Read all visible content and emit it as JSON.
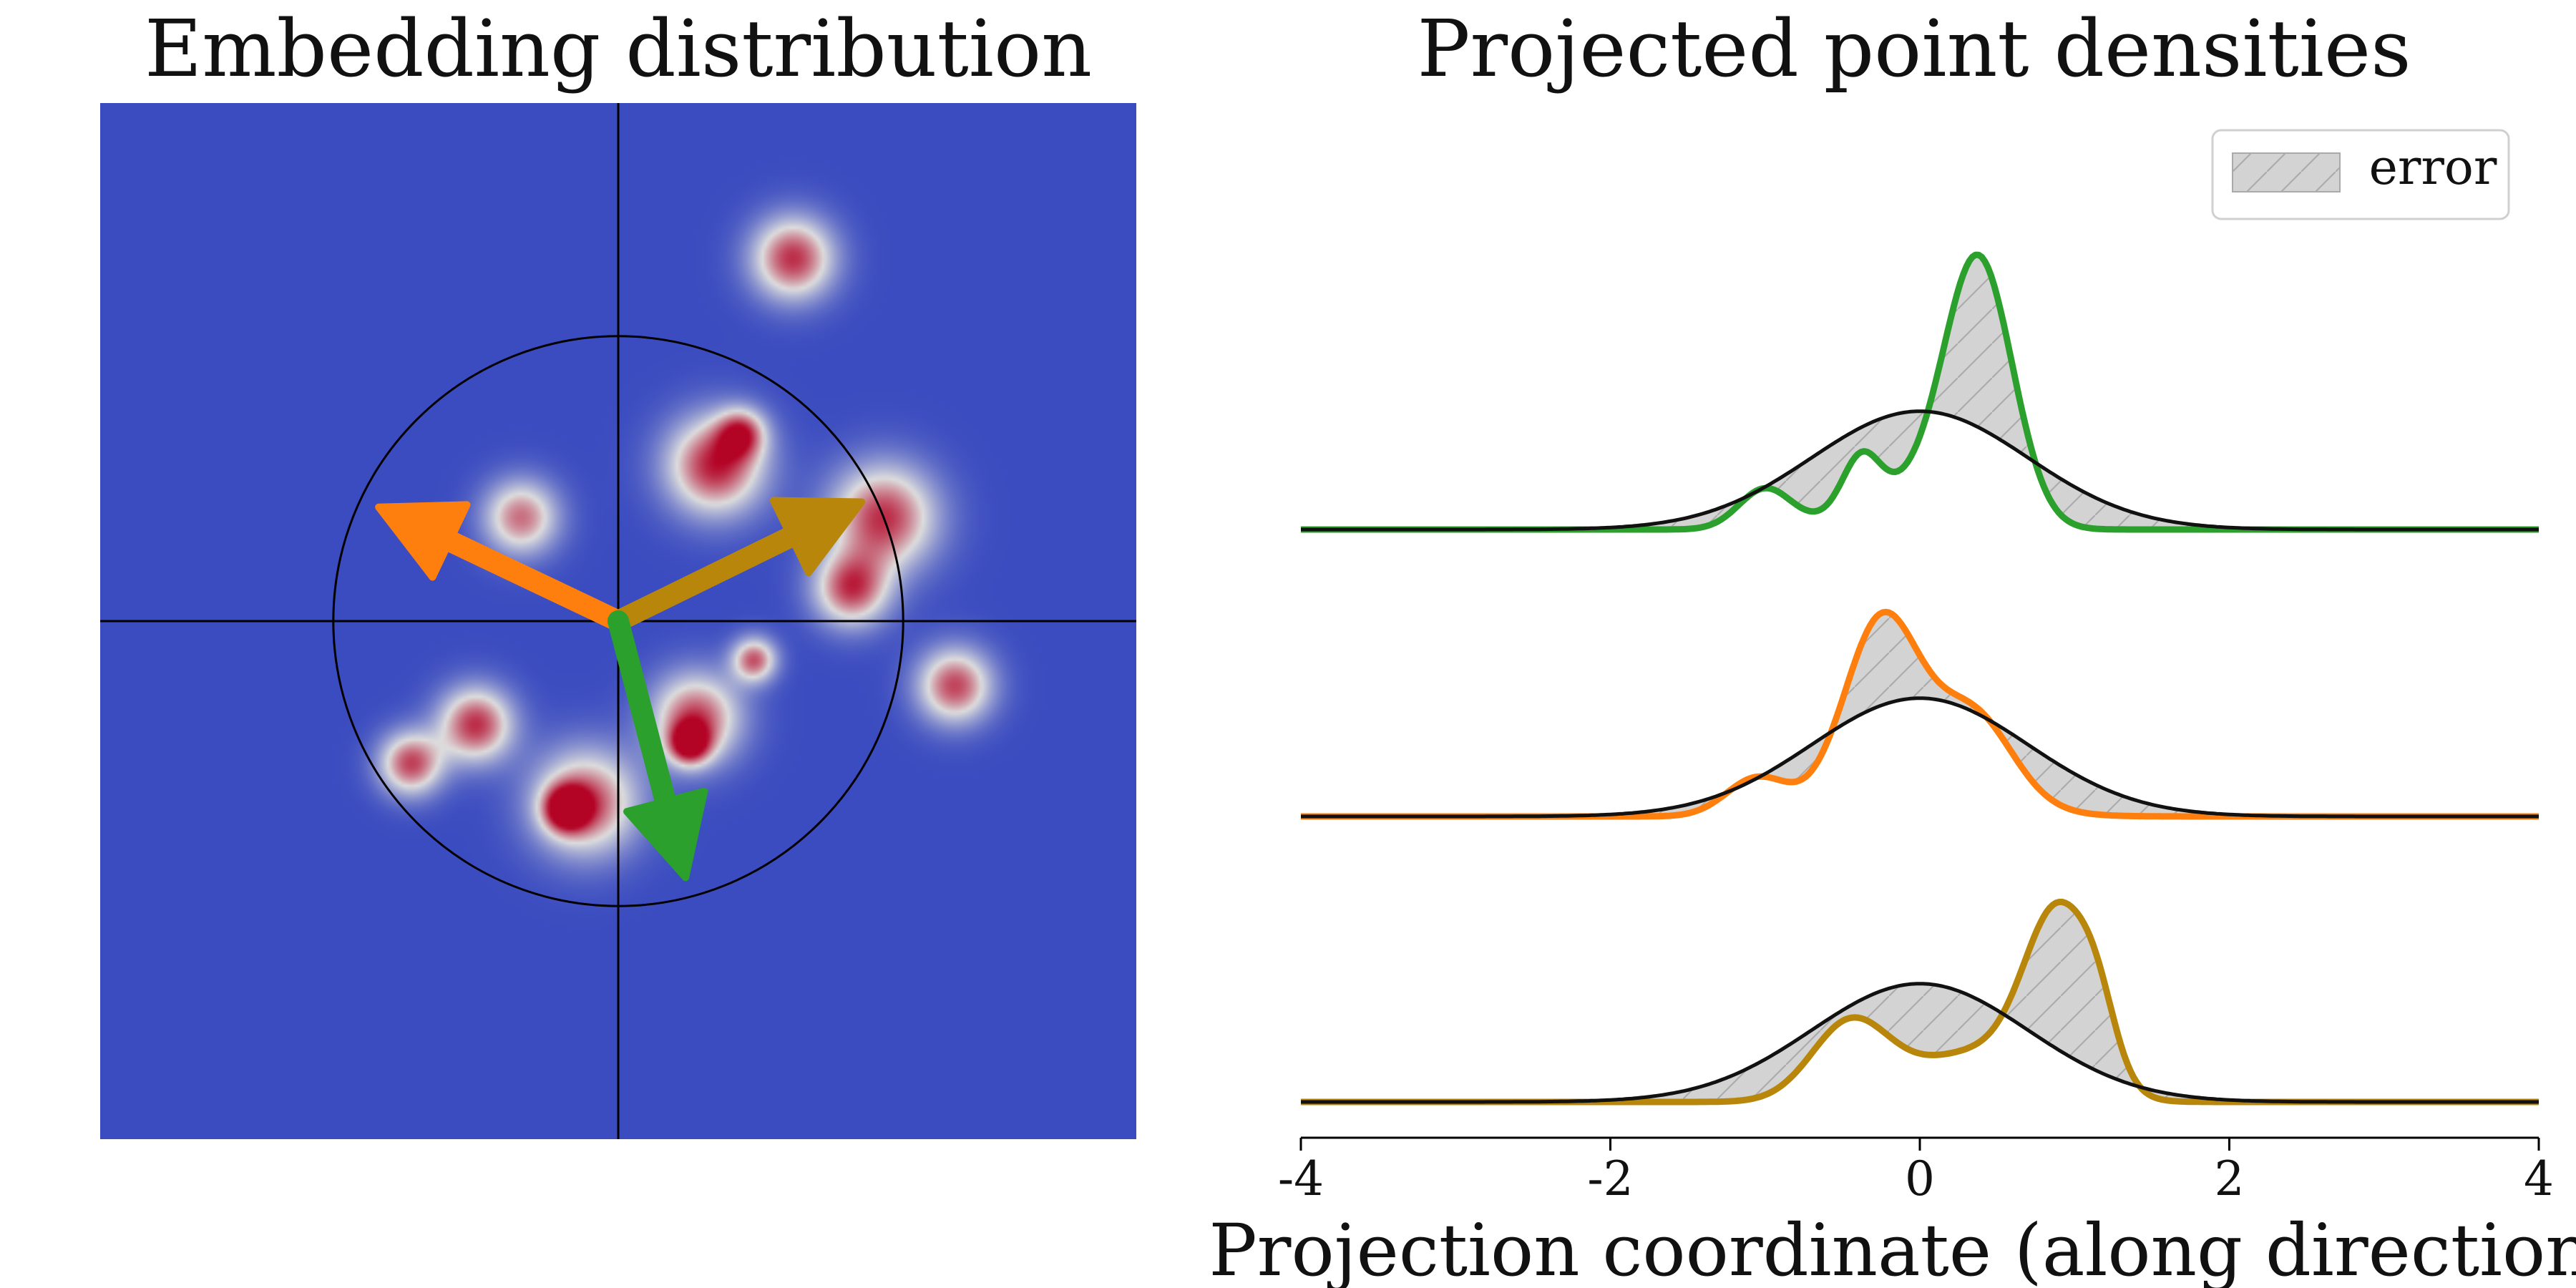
{
  "chart_data": [
    {
      "type": "heatmap",
      "title": "Embedding distribution",
      "xlim": [
        -4,
        4
      ],
      "ylim": [
        -4,
        4
      ],
      "axes_lines": true,
      "circle_radius": 2.2,
      "background_color": "#3b4cc0",
      "colormap": "coolwarm",
      "blobs": [
        {
          "x": 1.35,
          "y": 2.8,
          "sigma": 0.22,
          "amp": 0.9
        },
        {
          "x": 0.75,
          "y": 1.2,
          "sigma": 0.26,
          "amp": 0.95
        },
        {
          "x": 0.95,
          "y": 1.45,
          "sigma": 0.13,
          "amp": 0.7
        },
        {
          "x": -0.75,
          "y": 0.8,
          "sigma": 0.2,
          "amp": 0.75
        },
        {
          "x": 2.05,
          "y": 0.8,
          "sigma": 0.28,
          "amp": 0.9
        },
        {
          "x": 1.8,
          "y": 0.25,
          "sigma": 0.2,
          "amp": 0.85
        },
        {
          "x": 2.6,
          "y": -0.5,
          "sigma": 0.2,
          "amp": 0.85
        },
        {
          "x": 1.05,
          "y": -0.3,
          "sigma": 0.12,
          "amp": 0.8
        },
        {
          "x": 0.6,
          "y": -0.75,
          "sigma": 0.24,
          "amp": 0.85
        },
        {
          "x": 0.55,
          "y": -0.95,
          "sigma": 0.11,
          "amp": 0.85
        },
        {
          "x": -1.1,
          "y": -0.8,
          "sigma": 0.2,
          "amp": 0.9
        },
        {
          "x": -1.6,
          "y": -1.1,
          "sigma": 0.17,
          "amp": 0.85
        },
        {
          "x": -0.25,
          "y": -1.4,
          "sigma": 0.28,
          "amp": 0.85
        },
        {
          "x": -0.4,
          "y": -1.45,
          "sigma": 0.12,
          "amp": 0.9
        }
      ],
      "arrows": [
        {
          "color": "#ff7f0e",
          "dx": -1.85,
          "dy": 0.88
        },
        {
          "color": "#b8860b",
          "dx": 1.88,
          "dy": 0.92
        },
        {
          "color": "#2ca02c",
          "dx": 0.52,
          "dy": -1.98
        }
      ]
    },
    {
      "type": "line",
      "title": "Projected point densities",
      "xlabel": "Projection coordinate (along direction)",
      "ylabel": "",
      "xlim": [
        -4,
        4
      ],
      "xticks": [
        -4,
        -2,
        0,
        2,
        4
      ],
      "xtick_labels": [
        "-4",
        "-2",
        "0",
        "2",
        "4"
      ],
      "legend": {
        "position": "top-right",
        "label": "error",
        "fill": "#d3d3d3",
        "hatch": true
      },
      "reference": {
        "name": "",
        "type": "standard-normal",
        "mean": 0,
        "std": 0.7,
        "color": "#111111"
      },
      "series": [
        {
          "color": "#2ca02c",
          "baseline": 0,
          "components": [
            {
              "mu": 0.38,
              "s": 0.22,
              "w": 1.6
            },
            {
              "mu": -0.38,
              "s": 0.12,
              "w": 0.17
            },
            {
              "mu": -1.0,
              "s": 0.17,
              "w": 0.19
            },
            {
              "mu": -0.1,
              "s": 0.35,
              "w": 0.35
            }
          ]
        },
        {
          "color": "#ff7f0e",
          "baseline": -1,
          "components": [
            {
              "mu": -0.25,
              "s": 0.24,
              "w": 0.95
            },
            {
              "mu": 0.35,
              "s": 0.25,
              "w": 0.45
            },
            {
              "mu": -1.05,
              "s": 0.2,
              "w": 0.17
            },
            {
              "mu": 0.05,
              "s": 0.45,
              "w": 0.3
            }
          ]
        },
        {
          "color": "#b8860b",
          "baseline": -2,
          "components": [
            {
              "mu": 0.9,
              "s": 0.22,
              "w": 1.1
            },
            {
              "mu": -0.45,
              "s": 0.25,
              "w": 0.55
            },
            {
              "mu": 0.35,
              "s": 0.4,
              "w": 0.55
            },
            {
              "mu": 1.15,
              "s": 0.12,
              "w": 0.15
            }
          ]
        }
      ]
    }
  ]
}
